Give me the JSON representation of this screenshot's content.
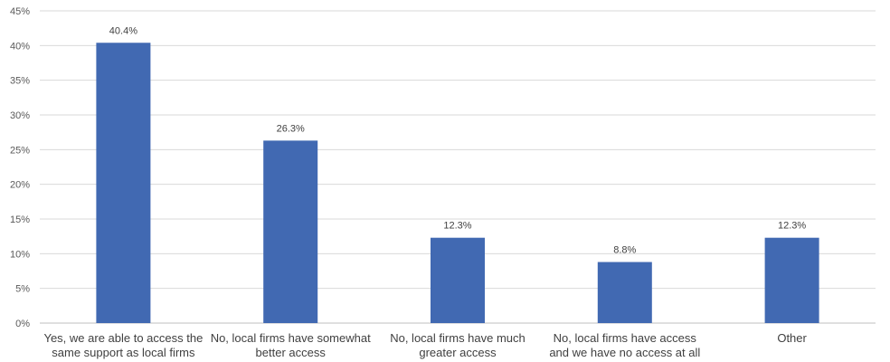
{
  "chart_data": {
    "type": "bar",
    "categories": [
      [
        "Yes, we are able to access the",
        "same support as local firms"
      ],
      [
        "No, local firms have somewhat",
        "better access"
      ],
      [
        "No, local firms have much",
        "greater access"
      ],
      [
        "No, local firms have access",
        "and we have no access at all"
      ],
      [
        "Other"
      ]
    ],
    "values": [
      40.4,
      26.3,
      12.3,
      8.8,
      12.3
    ],
    "data_labels": [
      "40.4%",
      "26.3%",
      "12.3%",
      "8.8%",
      "12.3%"
    ],
    "yticks": [
      "0%",
      "5%",
      "10%",
      "15%",
      "20%",
      "25%",
      "30%",
      "35%",
      "40%",
      "45%"
    ],
    "ylim": [
      0,
      45
    ],
    "title": "",
    "xlabel": "",
    "ylabel": "",
    "bar_color": "#4169b2",
    "grid": true,
    "legend": "none"
  }
}
